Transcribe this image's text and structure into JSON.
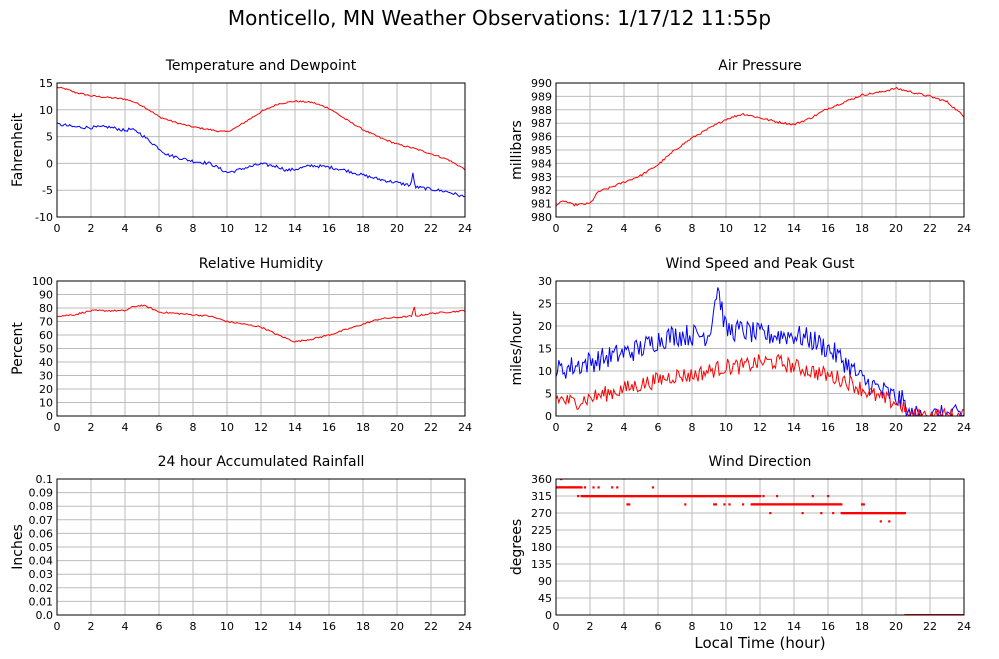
{
  "page": {
    "title": "Monticello, MN Weather Observations: 1/17/12 11:55p",
    "x_axis_label": "Local Time (hour)"
  },
  "colors": {
    "red": "#ff0000",
    "blue": "#0000ff",
    "grid": "#bbbbbb",
    "frame": "#000000"
  },
  "chart_data": [
    {
      "id": "temp",
      "type": "line",
      "title": "Temperature and Dewpoint",
      "ylabel": "Fahrenheit",
      "xlabel": "",
      "xlim": [
        0,
        24
      ],
      "ylim": [
        -10,
        15
      ],
      "xticks": [
        0,
        2,
        4,
        6,
        8,
        10,
        12,
        14,
        16,
        18,
        20,
        22,
        24
      ],
      "yticks": [
        -10,
        -5,
        0,
        5,
        10,
        15
      ],
      "grid": true,
      "series": [
        {
          "color": "#ff0000",
          "noise": 0.15,
          "x": [
            0,
            0.5,
            1,
            2,
            3,
            4,
            4.5,
            5,
            5.5,
            6,
            7,
            8,
            9,
            9.5,
            10,
            10.5,
            11,
            12,
            13,
            14,
            15,
            16,
            17,
            18,
            19,
            20,
            21,
            22,
            23,
            24
          ],
          "y": [
            14.2,
            13.9,
            13.3,
            12.6,
            12.3,
            12,
            11.5,
            10.8,
            9.8,
            8.7,
            7.6,
            6.8,
            6.3,
            6.0,
            5.9,
            6.6,
            7.6,
            9.6,
            11.1,
            11.6,
            11.4,
            10.3,
            8.2,
            6.3,
            4.8,
            3.6,
            2.8,
            1.8,
            0.7,
            -1.1
          ]
        },
        {
          "color": "#0000ff",
          "noise": 0.3,
          "x": [
            0,
            0.5,
            1,
            2,
            3,
            3.5,
            4,
            4.3,
            4.8,
            5.2,
            6,
            6.5,
            7,
            8,
            9,
            10,
            10.5,
            11,
            12,
            13,
            13.5,
            14,
            15,
            16,
            17,
            18,
            19,
            20,
            20.8,
            20.95,
            21.05,
            21.3,
            22,
            23,
            24
          ],
          "y": [
            7.3,
            7.1,
            6.8,
            6.7,
            6.8,
            6.5,
            6.1,
            6.4,
            5.8,
            4.8,
            2.8,
            1.6,
            1.2,
            0.4,
            0.0,
            -1.7,
            -1.4,
            -0.9,
            -0.1,
            -0.6,
            -1.3,
            -1.1,
            -0.4,
            -0.7,
            -1.3,
            -2.2,
            -3.0,
            -3.6,
            -4.1,
            -1.8,
            -4.4,
            -4.5,
            -4.8,
            -5.3,
            -6.3
          ]
        }
      ]
    },
    {
      "id": "pressure",
      "type": "line",
      "title": "Air Pressure",
      "ylabel": "millibars",
      "xlabel": "",
      "xlim": [
        0,
        24
      ],
      "ylim": [
        980,
        990
      ],
      "xticks": [
        0,
        2,
        4,
        6,
        8,
        10,
        12,
        14,
        16,
        18,
        20,
        22,
        24
      ],
      "yticks": [
        980,
        981,
        982,
        983,
        984,
        985,
        986,
        987,
        988,
        989,
        990
      ],
      "grid": true,
      "series": [
        {
          "color": "#ff0000",
          "noise": 0.08,
          "x": [
            0,
            0.5,
            1,
            2,
            2.5,
            3,
            4,
            5,
            6,
            7,
            8,
            9,
            10,
            11,
            12,
            13,
            14,
            15,
            16,
            17,
            18,
            19,
            20,
            21,
            22,
            23,
            24
          ],
          "y": [
            980.9,
            981.2,
            980.9,
            981.0,
            981.9,
            982.1,
            982.6,
            983.1,
            983.9,
            985.0,
            985.9,
            986.6,
            987.3,
            987.7,
            987.4,
            987.1,
            986.9,
            987.4,
            988.1,
            988.6,
            989.1,
            989.3,
            989.6,
            989.3,
            989.0,
            988.6,
            987.5
          ]
        }
      ]
    },
    {
      "id": "humidity",
      "type": "line",
      "title": "Relative Humidity",
      "ylabel": "Percent",
      "xlabel": "",
      "xlim": [
        0,
        24
      ],
      "ylim": [
        0,
        100
      ],
      "xticks": [
        0,
        2,
        4,
        6,
        8,
        10,
        12,
        14,
        16,
        18,
        20,
        22,
        24
      ],
      "yticks": [
        0,
        10,
        20,
        30,
        40,
        50,
        60,
        70,
        80,
        90,
        100
      ],
      "grid": true,
      "series": [
        {
          "color": "#ff0000",
          "noise": 0.6,
          "x": [
            0,
            1,
            2,
            3,
            4,
            4.5,
            5,
            5.5,
            6,
            7,
            8,
            9,
            10,
            11,
            12,
            13,
            14,
            15,
            16,
            17,
            18,
            19,
            20,
            20.9,
            21.0,
            21.1,
            22,
            23,
            24
          ],
          "y": [
            74,
            75,
            78,
            78,
            78,
            81,
            82,
            80,
            77,
            76,
            75,
            74,
            70,
            68,
            66,
            60,
            55,
            57,
            60,
            64,
            68,
            72,
            73,
            74,
            82,
            74,
            76,
            77,
            78
          ]
        }
      ]
    },
    {
      "id": "wind",
      "type": "line",
      "title": "Wind Speed and Peak Gust",
      "ylabel": "miles/hour",
      "xlabel": "",
      "xlim": [
        0,
        24
      ],
      "ylim": [
        0,
        30
      ],
      "xticks": [
        0,
        2,
        4,
        6,
        8,
        10,
        12,
        14,
        16,
        18,
        20,
        22,
        24
      ],
      "yticks": [
        0,
        5,
        10,
        15,
        20,
        25,
        30
      ],
      "grid": true,
      "series": [
        {
          "color": "#0000ff",
          "noise": 2.5,
          "x": [
            0,
            1,
            2,
            3,
            4,
            5,
            6,
            7,
            8,
            9,
            9.5,
            10,
            11,
            12,
            13,
            14,
            15,
            16,
            17,
            18,
            19,
            19.5,
            20,
            20.5,
            20.6,
            24
          ],
          "y": [
            10,
            11,
            12,
            13,
            14,
            15,
            17,
            18,
            18,
            18,
            29,
            19,
            19,
            18,
            18,
            18,
            17,
            15,
            12,
            8,
            6,
            5,
            4,
            3,
            0,
            0
          ]
        },
        {
          "color": "#ff0000",
          "noise": 1.8,
          "x": [
            0,
            1,
            2,
            3,
            4,
            5,
            6,
            7,
            8,
            9,
            10,
            11,
            12,
            13,
            14,
            15,
            16,
            17,
            18,
            19,
            20,
            20.5,
            20.6,
            24
          ],
          "y": [
            4,
            3,
            4,
            5,
            6,
            7,
            8,
            9,
            9,
            10,
            11,
            11,
            12,
            12,
            11,
            10,
            9,
            8,
            6,
            4,
            3,
            2,
            0,
            0
          ]
        }
      ]
    },
    {
      "id": "rain",
      "type": "line",
      "title": "24 hour Accumulated Rainfall",
      "ylabel": "Inches",
      "xlabel": "",
      "xlim": [
        0,
        24
      ],
      "ylim": [
        0,
        0.1
      ],
      "xticks": [
        0,
        2,
        4,
        6,
        8,
        10,
        12,
        14,
        16,
        18,
        20,
        22,
        24
      ],
      "yticks": [
        0.0,
        0.01,
        0.02,
        0.03,
        0.04,
        0.05,
        0.06,
        0.07,
        0.08,
        0.09,
        0.1
      ],
      "ytick_labels": [
        "0.0",
        "0.01",
        "0.02",
        "0.03",
        "0.04",
        "0.05",
        "0.06",
        "0.07",
        "0.08",
        "0.09",
        "0.1"
      ],
      "grid": true,
      "series": [
        {
          "color": "#ff0000",
          "noise": 0,
          "x": [
            0,
            24
          ],
          "y": [
            0,
            0
          ]
        }
      ]
    },
    {
      "id": "direction",
      "type": "scatter",
      "title": "Wind Direction",
      "ylabel": "degrees",
      "xlabel": "Local Time (hour)",
      "xlim": [
        0,
        24
      ],
      "ylim": [
        0,
        360
      ],
      "xticks": [
        0,
        2,
        4,
        6,
        8,
        10,
        12,
        14,
        16,
        18,
        20,
        22,
        24
      ],
      "yticks": [
        0,
        45,
        90,
        135,
        180,
        225,
        270,
        315,
        360
      ],
      "grid": true,
      "segments": [
        {
          "color": "#ff0000",
          "from": 0.0,
          "to": 1.5,
          "value": 338,
          "step": 0.06
        },
        {
          "color": "#ff0000",
          "from": 1.5,
          "to": 12.0,
          "value": 315,
          "step": 0.06
        },
        {
          "color": "#ff0000",
          "from": 11.5,
          "to": 16.8,
          "value": 293,
          "step": 0.06
        },
        {
          "color": "#ff0000",
          "from": 16.8,
          "to": 20.55,
          "value": 270,
          "step": 0.06
        },
        {
          "color": "#ff0000",
          "from": 20.55,
          "to": 24.0,
          "value": 0,
          "step": 0.05
        }
      ],
      "points": [
        {
          "x": 0.3,
          "y": 360
        },
        {
          "x": 1.3,
          "y": 315
        },
        {
          "x": 1.7,
          "y": 338
        },
        {
          "x": 2.2,
          "y": 338
        },
        {
          "x": 2.5,
          "y": 338
        },
        {
          "x": 3.3,
          "y": 338
        },
        {
          "x": 3.6,
          "y": 338
        },
        {
          "x": 4.2,
          "y": 293
        },
        {
          "x": 4.3,
          "y": 293
        },
        {
          "x": 5.7,
          "y": 338
        },
        {
          "x": 7.6,
          "y": 293
        },
        {
          "x": 9.3,
          "y": 293
        },
        {
          "x": 9.4,
          "y": 293
        },
        {
          "x": 9.9,
          "y": 293
        },
        {
          "x": 10.2,
          "y": 293
        },
        {
          "x": 11.0,
          "y": 293
        },
        {
          "x": 12.2,
          "y": 315
        },
        {
          "x": 12.6,
          "y": 270
        },
        {
          "x": 13.0,
          "y": 315
        },
        {
          "x": 14.5,
          "y": 270
        },
        {
          "x": 15.1,
          "y": 315
        },
        {
          "x": 15.6,
          "y": 270
        },
        {
          "x": 16.0,
          "y": 315
        },
        {
          "x": 16.3,
          "y": 270
        },
        {
          "x": 18.0,
          "y": 293
        },
        {
          "x": 18.1,
          "y": 293
        },
        {
          "x": 19.1,
          "y": 248
        },
        {
          "x": 19.6,
          "y": 248
        }
      ]
    }
  ]
}
